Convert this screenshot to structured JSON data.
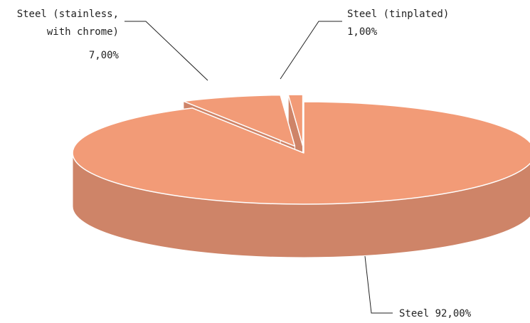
{
  "chart_data": {
    "type": "pie",
    "style": "3d-exploded",
    "slices": [
      {
        "category": "Steel",
        "value": 92.0,
        "label": "92,00%"
      },
      {
        "category": "Steel (stainless, with chrome)",
        "value": 7.0,
        "label": "7,00%"
      },
      {
        "category": "Steel (tinplated)",
        "value": 1.0,
        "label": "1,00%"
      }
    ],
    "text_labels": {
      "steel": "Steel 92,00%",
      "stainless_line1": "Steel (stainless,",
      "stainless_line2": "with chrome)",
      "stainless_value": "7,00%",
      "tinplated_line1": "Steel (tinplated)",
      "tinplated_value": "1,00%"
    },
    "colors": {
      "top": "#F29B77",
      "side": "#CE8468",
      "edge": "#ffffff"
    },
    "legend": "none"
  }
}
